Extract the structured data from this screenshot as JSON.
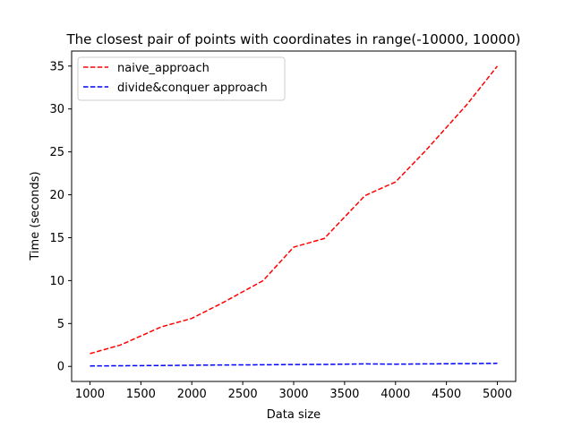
{
  "chart_data": {
    "type": "line",
    "title": "The closest pair of points with coordinates in range(-10000, 10000)",
    "xlabel": "Data size",
    "ylabel": "Time (seconds)",
    "xlim": [
      820,
      5180
    ],
    "ylim": [
      -1.75,
      36.75
    ],
    "xticks": [
      1000,
      1500,
      2000,
      2500,
      3000,
      3500,
      4000,
      4500,
      5000
    ],
    "yticks": [
      0,
      5,
      10,
      15,
      20,
      25,
      30,
      35
    ],
    "grid": false,
    "legend_position": "top-left",
    "x": [
      1000,
      1300,
      1700,
      2000,
      2300,
      2700,
      3000,
      3300,
      3700,
      4000,
      4300,
      4700,
      5000
    ],
    "series": [
      {
        "name": "naive_approach",
        "color": "#ff0000",
        "style": "dashed",
        "values": [
          1.5,
          2.5,
          4.6,
          5.6,
          7.4,
          10.0,
          13.9,
          14.9,
          19.9,
          21.5,
          25.2,
          30.5,
          35.0
        ]
      },
      {
        "name": "divide&conquer approach",
        "color": "#0000ff",
        "style": "dashed",
        "values": [
          0.05,
          0.08,
          0.11,
          0.14,
          0.17,
          0.19,
          0.22,
          0.23,
          0.3,
          0.26,
          0.29,
          0.33,
          0.36
        ]
      }
    ]
  }
}
